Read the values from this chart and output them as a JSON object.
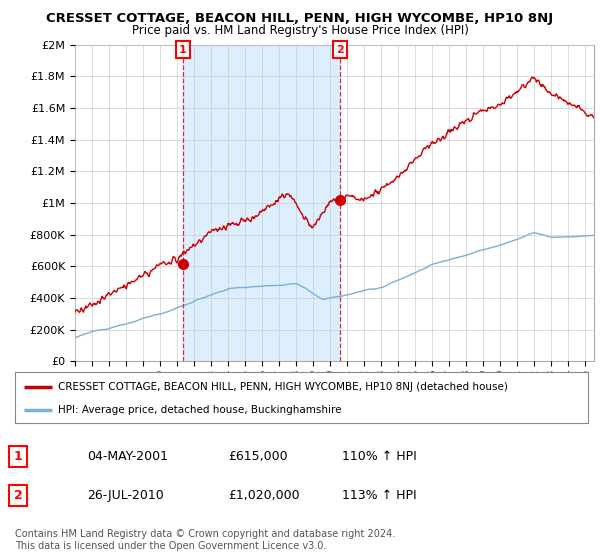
{
  "title": "CRESSET COTTAGE, BEACON HILL, PENN, HIGH WYCOMBE, HP10 8NJ",
  "subtitle": "Price paid vs. HM Land Registry's House Price Index (HPI)",
  "ylabel_ticks": [
    "£0",
    "£200K",
    "£400K",
    "£600K",
    "£800K",
    "£1M",
    "£1.2M",
    "£1.4M",
    "£1.6M",
    "£1.8M",
    "£2M"
  ],
  "ylabel_values": [
    0,
    200000,
    400000,
    600000,
    800000,
    1000000,
    1200000,
    1400000,
    1600000,
    1800000,
    2000000
  ],
  "ylim": [
    0,
    2000000
  ],
  "sale1_date": 2001.35,
  "sale1_value": 615000,
  "sale1_label": "1",
  "sale2_date": 2010.57,
  "sale2_value": 1020000,
  "sale2_label": "2",
  "red_line_color": "#cc0000",
  "blue_line_color": "#7ab0d4",
  "shade_color": "#ddeeff",
  "background_color": "#ffffff",
  "grid_color": "#cccccc",
  "legend_line1": "CRESSET COTTAGE, BEACON HILL, PENN, HIGH WYCOMBE, HP10 8NJ (detached house)",
  "legend_line2": "HPI: Average price, detached house, Buckinghamshire",
  "table_row1": [
    "1",
    "04-MAY-2001",
    "£615,000",
    "110% ↑ HPI"
  ],
  "table_row2": [
    "2",
    "26-JUL-2010",
    "£1,020,000",
    "113% ↑ HPI"
  ],
  "footnote": "Contains HM Land Registry data © Crown copyright and database right 2024.\nThis data is licensed under the Open Government Licence v3.0.",
  "xmin": 1995.0,
  "xmax": 2025.5,
  "n_points": 730
}
